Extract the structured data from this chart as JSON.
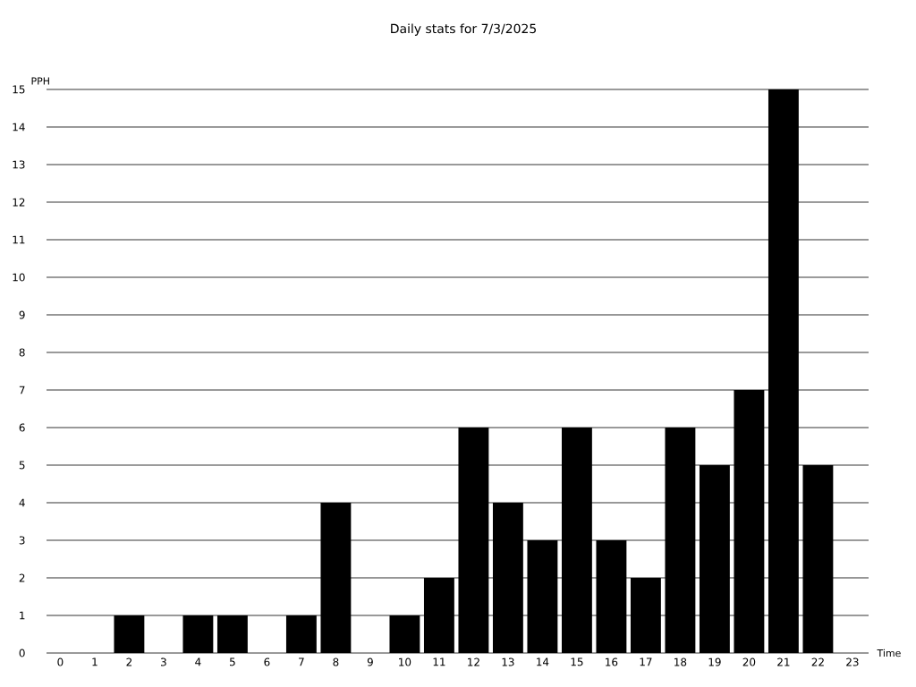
{
  "chart_data": {
    "type": "bar",
    "title": "Daily stats for 7/3/2025",
    "xlabel": "Time",
    "ylabel": "PPH",
    "categories": [
      "0",
      "1",
      "2",
      "3",
      "4",
      "5",
      "6",
      "7",
      "8",
      "9",
      "10",
      "11",
      "12",
      "13",
      "14",
      "15",
      "16",
      "17",
      "18",
      "19",
      "20",
      "21",
      "22",
      "23"
    ],
    "values": [
      0,
      0,
      1,
      0,
      1,
      1,
      0,
      1,
      4,
      0,
      1,
      2,
      6,
      4,
      3,
      6,
      3,
      2,
      6,
      5,
      7,
      15,
      5,
      0
    ],
    "color": "#000000",
    "ylim": [
      0,
      15
    ],
    "yticks": [
      0,
      1,
      2,
      3,
      4,
      5,
      6,
      7,
      8,
      9,
      10,
      11,
      12,
      13,
      14,
      15
    ],
    "grid": "y"
  }
}
